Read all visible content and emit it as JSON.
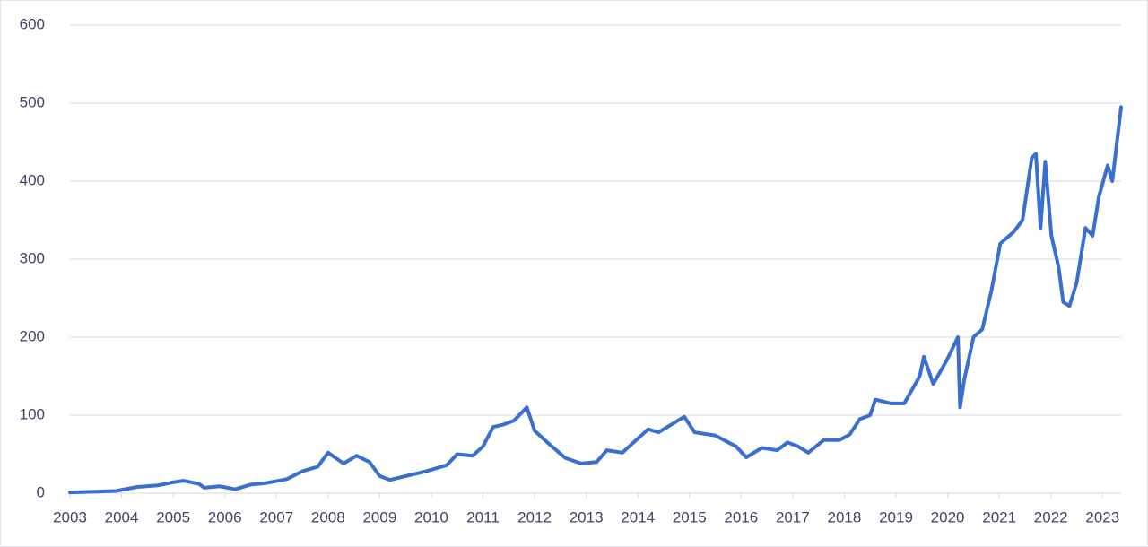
{
  "chart_data": {
    "type": "line",
    "x": [
      2003.0,
      2003.5,
      2003.9,
      2004.3,
      2004.7,
      2005.0,
      2005.2,
      2005.5,
      2005.6,
      2005.9,
      2006.2,
      2006.5,
      2006.8,
      2007.2,
      2007.5,
      2007.8,
      2008.0,
      2008.3,
      2008.55,
      2008.8,
      2009.0,
      2009.2,
      2009.5,
      2009.9,
      2010.3,
      2010.5,
      2010.8,
      2011.0,
      2011.2,
      2011.4,
      2011.6,
      2011.85,
      2012.0,
      2012.3,
      2012.6,
      2012.9,
      2013.2,
      2013.4,
      2013.7,
      2014.0,
      2014.2,
      2014.4,
      2014.7,
      2014.9,
      2015.1,
      2015.5,
      2015.9,
      2016.1,
      2016.4,
      2016.7,
      2016.9,
      2017.1,
      2017.3,
      2017.6,
      2017.9,
      2018.1,
      2018.3,
      2018.5,
      2018.6,
      2018.9,
      2019.16,
      2019.46,
      2019.54,
      2019.72,
      2019.98,
      2020.2,
      2020.24,
      2020.32,
      2020.5,
      2020.67,
      2020.85,
      2021.02,
      2021.28,
      2021.45,
      2021.63,
      2021.71,
      2021.8,
      2021.89,
      2022.01,
      2022.15,
      2022.24,
      2022.36,
      2022.5,
      2022.67,
      2022.81,
      2022.93,
      2023.1,
      2023.19,
      2023.36
    ],
    "values": [
      1,
      2,
      3,
      8,
      10,
      14,
      16,
      12,
      7,
      9,
      5,
      11,
      13,
      18,
      28,
      34,
      52,
      38,
      48,
      40,
      22,
      17,
      22,
      28,
      36,
      50,
      48,
      60,
      85,
      88,
      93,
      110,
      80,
      62,
      45,
      38,
      40,
      55,
      52,
      70,
      82,
      78,
      90,
      98,
      78,
      74,
      60,
      46,
      58,
      55,
      65,
      60,
      52,
      68,
      68,
      75,
      95,
      100,
      120,
      115,
      115,
      150,
      175,
      140,
      170,
      200,
      110,
      145,
      200,
      210,
      260,
      320,
      335,
      350,
      430,
      435,
      340,
      425,
      330,
      290,
      245,
      240,
      270,
      340,
      330,
      380,
      420,
      400,
      495
    ],
    "color": "#3a6fd0",
    "xlim": [
      2003,
      2023.36
    ],
    "ylim": [
      0,
      600
    ],
    "xticks": [
      2003,
      2004,
      2005,
      2006,
      2007,
      2008,
      2009,
      2010,
      2011,
      2012,
      2013,
      2014,
      2015,
      2016,
      2017,
      2018,
      2019,
      2020,
      2021,
      2022,
      2023
    ],
    "yticks": [
      0,
      100,
      200,
      300,
      400,
      500,
      600
    ],
    "grid": true
  }
}
